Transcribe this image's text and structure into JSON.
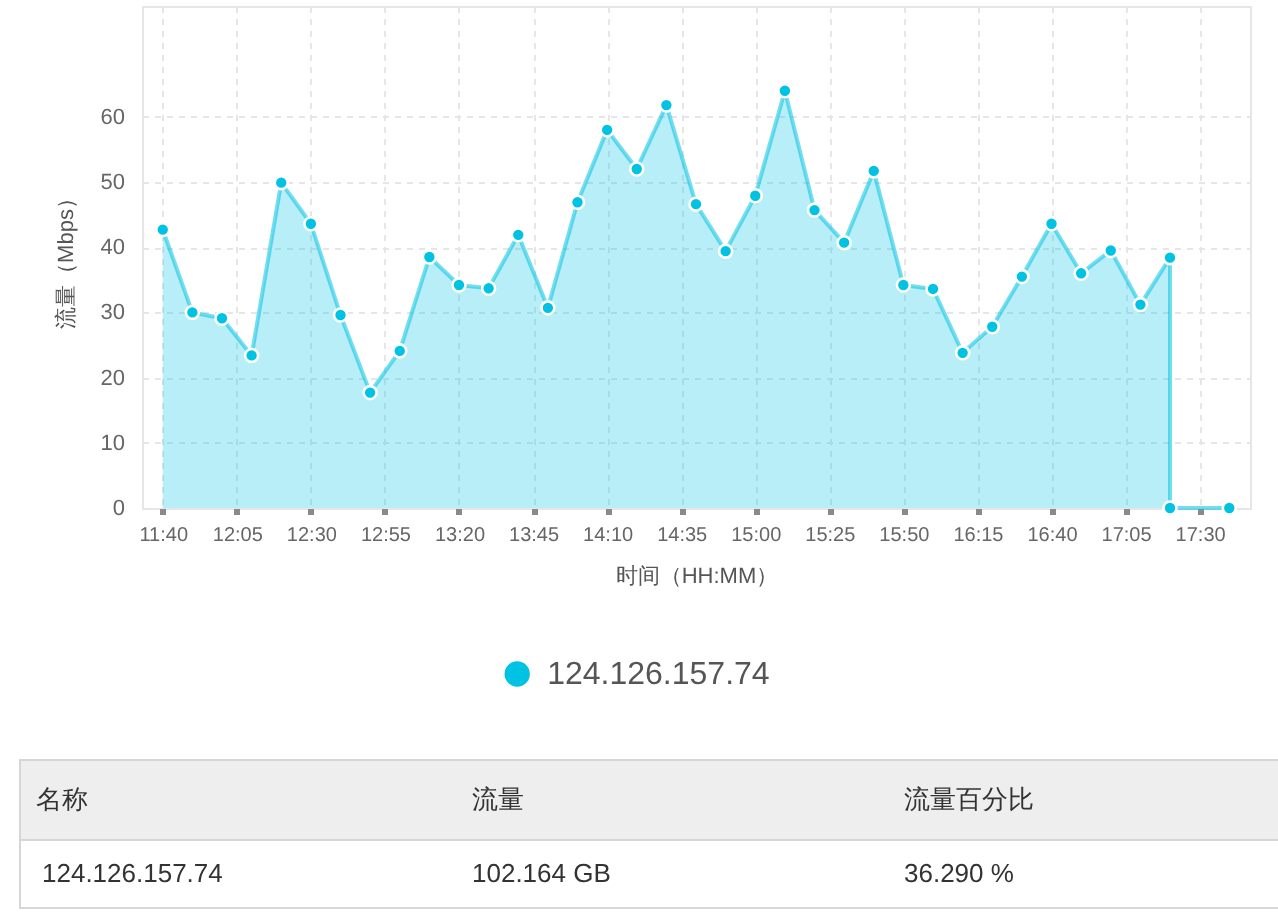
{
  "chart_data": {
    "type": "area",
    "xlabel": "时间（HH:MM）",
    "ylabel": "流量（Mbps）",
    "x": [
      11.6667,
      11.8333,
      12,
      12.1667,
      12.3333,
      12.5,
      12.6667,
      12.8333,
      13,
      13.1667,
      13.3333,
      13.5,
      13.6667,
      13.8333,
      14,
      14.1667,
      14.3333,
      14.5,
      14.6667,
      14.8333,
      15,
      15.1667,
      15.3333,
      15.5,
      15.6667,
      15.8333,
      16,
      16.1667,
      16.3333,
      16.5,
      16.6667,
      16.8333,
      17,
      17.1667,
      17.3333,
      17.3333,
      17.6667
    ],
    "series": [
      {
        "name": "124.126.157.74",
        "color": "#00c2e3",
        "values": [
          42.7,
          30.0,
          29.1,
          23.4,
          49.9,
          43.6,
          29.6,
          17.7,
          24.1,
          38.5,
          34.2,
          33.7,
          41.9,
          30.7,
          46.9,
          58.0,
          52.0,
          61.8,
          46.6,
          39.4,
          47.9,
          64.0,
          45.7,
          40.7,
          51.7,
          34.2,
          33.6,
          23.8,
          27.8,
          35.5,
          43.6,
          36.0,
          39.5,
          31.2,
          38.4,
          0,
          0
        ]
      }
    ],
    "xlim": [
      11.55,
      17.7833
    ],
    "xticks": [
      {
        "value": 11.6667,
        "label": "11:40"
      },
      {
        "value": 12.0833,
        "label": "12:05"
      },
      {
        "value": 12.5,
        "label": "12:30"
      },
      {
        "value": 12.9167,
        "label": "12:55"
      },
      {
        "value": 13.3333,
        "label": "13:20"
      },
      {
        "value": 13.75,
        "label": "13:45"
      },
      {
        "value": 14.1667,
        "label": "14:10"
      },
      {
        "value": 14.5833,
        "label": "14:35"
      },
      {
        "value": 15,
        "label": "15:00"
      },
      {
        "value": 15.4167,
        "label": "15:25"
      },
      {
        "value": 15.8333,
        "label": "15:50"
      },
      {
        "value": 16.25,
        "label": "16:15"
      },
      {
        "value": 16.6667,
        "label": "16:40"
      },
      {
        "value": 17.0833,
        "label": "17:05"
      },
      {
        "value": 17.5,
        "label": "17:30"
      }
    ],
    "ylim": [
      0,
      77
    ],
    "yticks": [
      0,
      10,
      20,
      30,
      40,
      50,
      60
    ],
    "grid": true,
    "legend": "bottom",
    "marker": "circle",
    "annotations": [
      "名称",
      "流量",
      "流量百分比",
      "124.126.157.74",
      "102.164 GB",
      "36.290 %"
    ]
  }
}
